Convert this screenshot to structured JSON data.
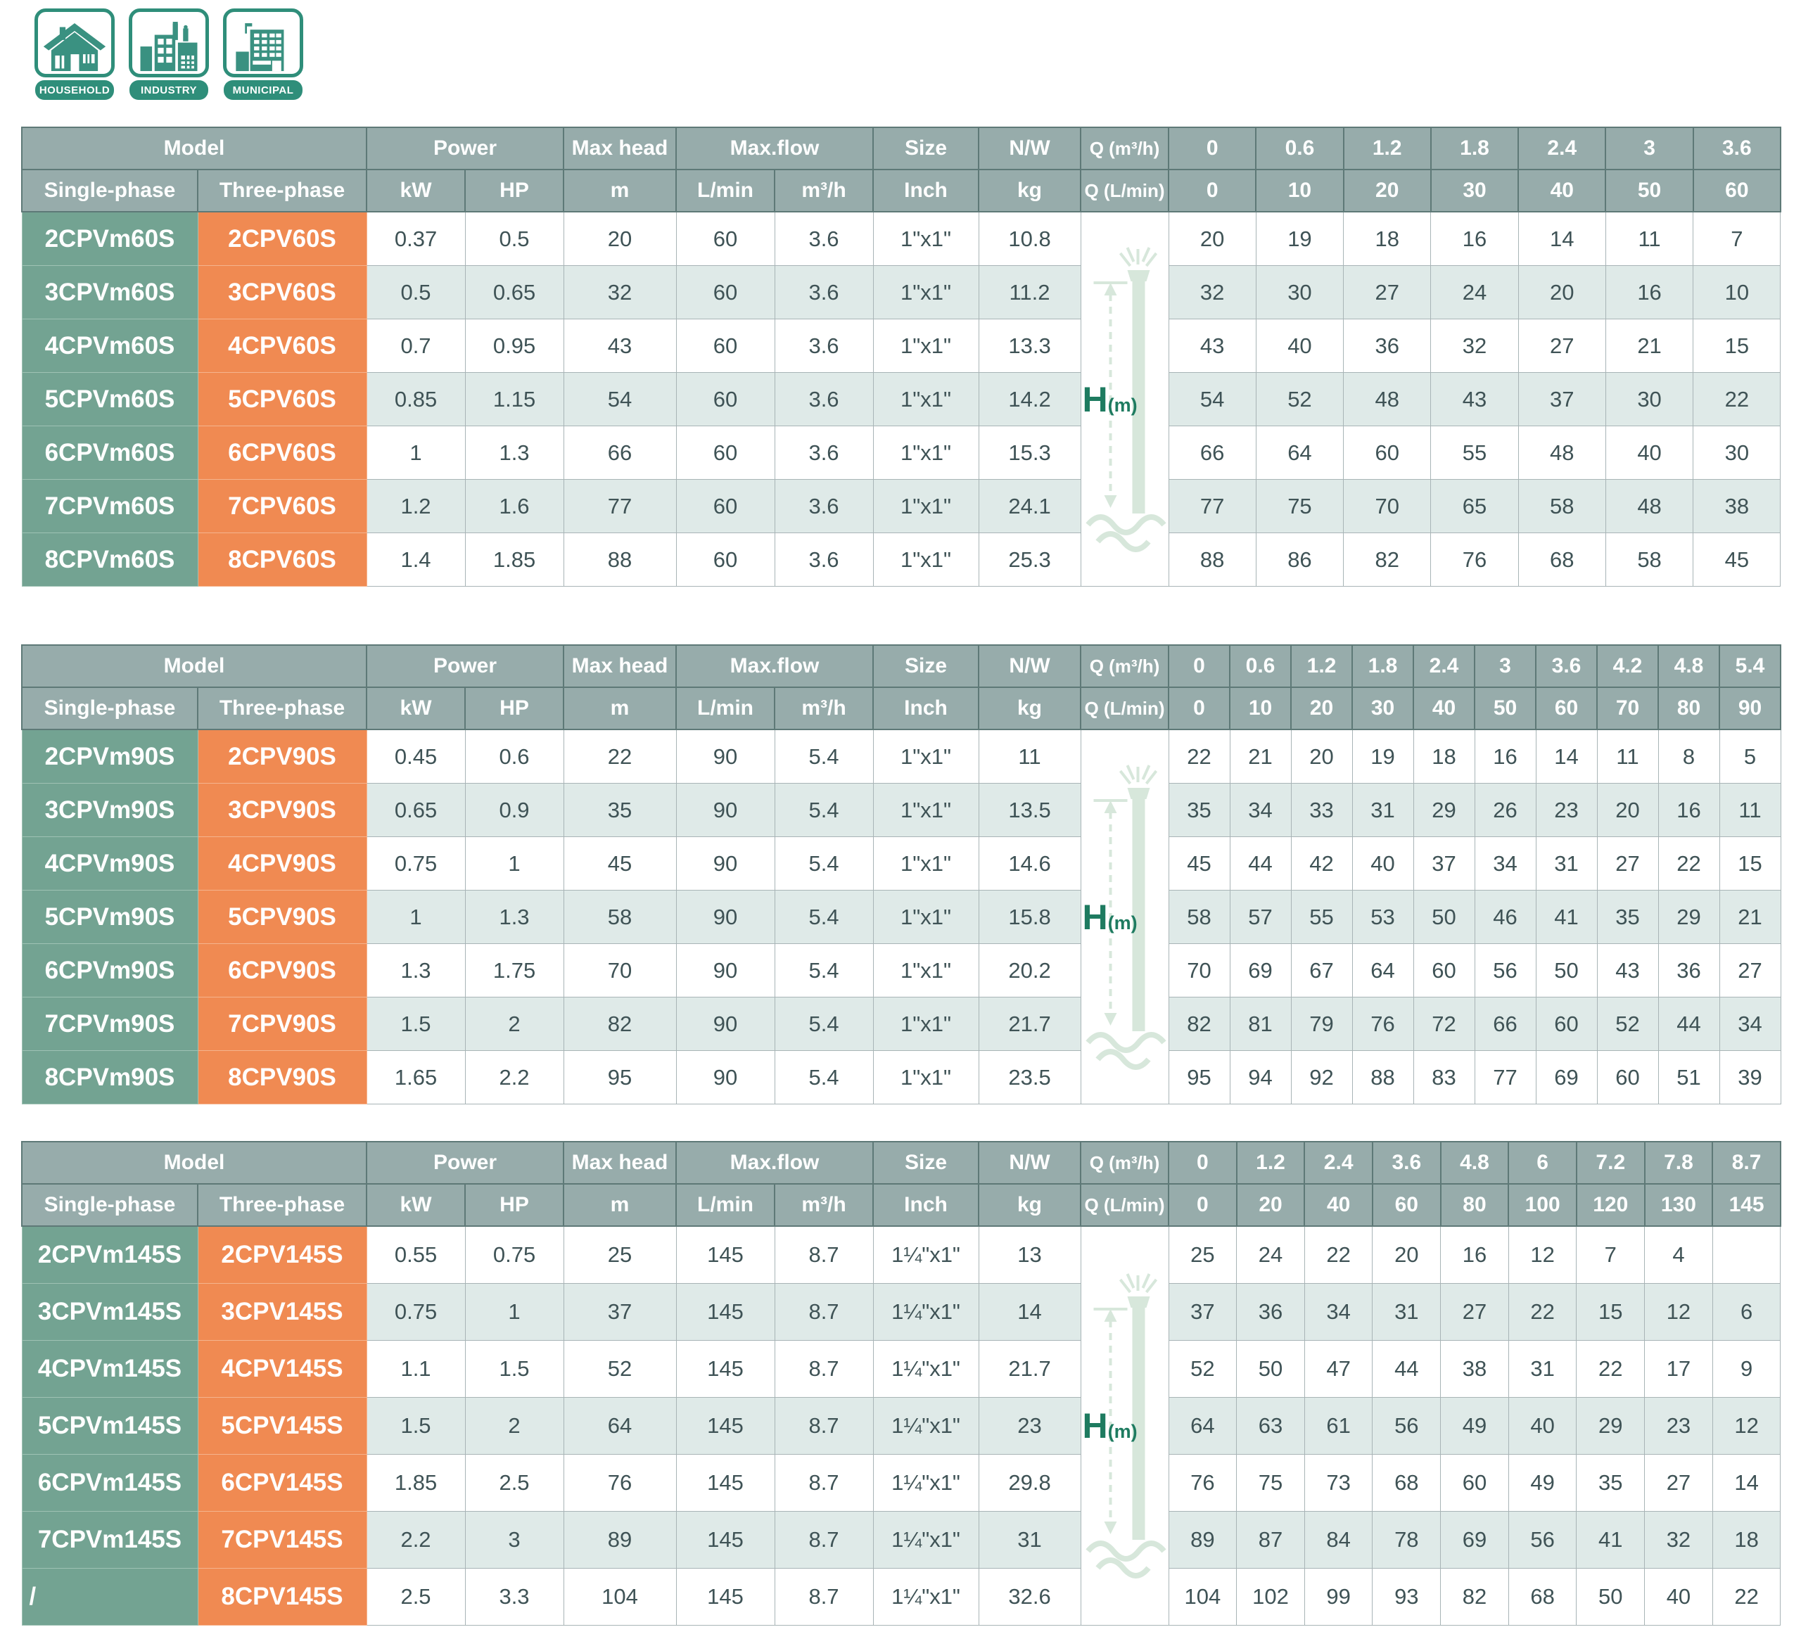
{
  "icons": [
    {
      "label": "HOUSEHOLD"
    },
    {
      "label": "INDUSTRY"
    },
    {
      "label": "MUNICIPAL"
    }
  ],
  "labels": {
    "model": "Model",
    "power": "Power",
    "max_head": "Max head",
    "max_flow": "Max.flow",
    "size": "Size",
    "nw": "N/W",
    "q_m3h": "Q (m³/h)",
    "q_lmin": "Q (L/min)",
    "single": "Single-phase",
    "three": "Three-phase",
    "kw": "kW",
    "hp": "HP",
    "m": "m",
    "lmin": "L/min",
    "m3h": "m³/h",
    "inch": "Inch",
    "kg": "kg",
    "h_big": "H",
    "h_small": "(m)"
  },
  "tables": [
    {
      "q_m3h": [
        "0",
        "0.6",
        "1.2",
        "1.8",
        "2.4",
        "3",
        "3.6"
      ],
      "q_lmin": [
        "0",
        "10",
        "20",
        "30",
        "40",
        "50",
        "60"
      ],
      "rows": [
        {
          "single": "2CPVm60S",
          "three": "2CPV60S",
          "kw": "0.37",
          "hp": "0.5",
          "head": "20",
          "flow_lmin": "60",
          "flow_m3h": "3.6",
          "size": "1\"x1\"",
          "nw": "10.8",
          "h": [
            "20",
            "19",
            "18",
            "16",
            "14",
            "11",
            "7"
          ]
        },
        {
          "single": "3CPVm60S",
          "three": "3CPV60S",
          "kw": "0.5",
          "hp": "0.65",
          "head": "32",
          "flow_lmin": "60",
          "flow_m3h": "3.6",
          "size": "1\"x1\"",
          "nw": "11.2",
          "h": [
            "32",
            "30",
            "27",
            "24",
            "20",
            "16",
            "10"
          ]
        },
        {
          "single": "4CPVm60S",
          "three": "4CPV60S",
          "kw": "0.7",
          "hp": "0.95",
          "head": "43",
          "flow_lmin": "60",
          "flow_m3h": "3.6",
          "size": "1\"x1\"",
          "nw": "13.3",
          "h": [
            "43",
            "40",
            "36",
            "32",
            "27",
            "21",
            "15"
          ]
        },
        {
          "single": "5CPVm60S",
          "three": "5CPV60S",
          "kw": "0.85",
          "hp": "1.15",
          "head": "54",
          "flow_lmin": "60",
          "flow_m3h": "3.6",
          "size": "1\"x1\"",
          "nw": "14.2",
          "h": [
            "54",
            "52",
            "48",
            "43",
            "37",
            "30",
            "22"
          ]
        },
        {
          "single": "6CPVm60S",
          "three": "6CPV60S",
          "kw": "1",
          "hp": "1.3",
          "head": "66",
          "flow_lmin": "60",
          "flow_m3h": "3.6",
          "size": "1\"x1\"",
          "nw": "15.3",
          "h": [
            "66",
            "64",
            "60",
            "55",
            "48",
            "40",
            "30"
          ]
        },
        {
          "single": "7CPVm60S",
          "three": "7CPV60S",
          "kw": "1.2",
          "hp": "1.6",
          "head": "77",
          "flow_lmin": "60",
          "flow_m3h": "3.6",
          "size": "1\"x1\"",
          "nw": "24.1",
          "h": [
            "77",
            "75",
            "70",
            "65",
            "58",
            "48",
            "38"
          ]
        },
        {
          "single": "8CPVm60S",
          "three": "8CPV60S",
          "kw": "1.4",
          "hp": "1.85",
          "head": "88",
          "flow_lmin": "60",
          "flow_m3h": "3.6",
          "size": "1\"x1\"",
          "nw": "25.3",
          "h": [
            "88",
            "86",
            "82",
            "76",
            "68",
            "58",
            "45"
          ]
        }
      ]
    },
    {
      "q_m3h": [
        "0",
        "0.6",
        "1.2",
        "1.8",
        "2.4",
        "3",
        "3.6",
        "4.2",
        "4.8",
        "5.4"
      ],
      "q_lmin": [
        "0",
        "10",
        "20",
        "30",
        "40",
        "50",
        "60",
        "70",
        "80",
        "90"
      ],
      "rows": [
        {
          "single": "2CPVm90S",
          "three": "2CPV90S",
          "kw": "0.45",
          "hp": "0.6",
          "head": "22",
          "flow_lmin": "90",
          "flow_m3h": "5.4",
          "size": "1\"x1\"",
          "nw": "11",
          "h": [
            "22",
            "21",
            "20",
            "19",
            "18",
            "16",
            "14",
            "11",
            "8",
            "5"
          ]
        },
        {
          "single": "3CPVm90S",
          "three": "3CPV90S",
          "kw": "0.65",
          "hp": "0.9",
          "head": "35",
          "flow_lmin": "90",
          "flow_m3h": "5.4",
          "size": "1\"x1\"",
          "nw": "13.5",
          "h": [
            "35",
            "34",
            "33",
            "31",
            "29",
            "26",
            "23",
            "20",
            "16",
            "11"
          ]
        },
        {
          "single": "4CPVm90S",
          "three": "4CPV90S",
          "kw": "0.75",
          "hp": "1",
          "head": "45",
          "flow_lmin": "90",
          "flow_m3h": "5.4",
          "size": "1\"x1\"",
          "nw": "14.6",
          "h": [
            "45",
            "44",
            "42",
            "40",
            "37",
            "34",
            "31",
            "27",
            "22",
            "15"
          ]
        },
        {
          "single": "5CPVm90S",
          "three": "5CPV90S",
          "kw": "1",
          "hp": "1.3",
          "head": "58",
          "flow_lmin": "90",
          "flow_m3h": "5.4",
          "size": "1\"x1\"",
          "nw": "15.8",
          "h": [
            "58",
            "57",
            "55",
            "53",
            "50",
            "46",
            "41",
            "35",
            "29",
            "21"
          ]
        },
        {
          "single": "6CPVm90S",
          "three": "6CPV90S",
          "kw": "1.3",
          "hp": "1.75",
          "head": "70",
          "flow_lmin": "90",
          "flow_m3h": "5.4",
          "size": "1\"x1\"",
          "nw": "20.2",
          "h": [
            "70",
            "69",
            "67",
            "64",
            "60",
            "56",
            "50",
            "43",
            "36",
            "27"
          ]
        },
        {
          "single": "7CPVm90S",
          "three": "7CPV90S",
          "kw": "1.5",
          "hp": "2",
          "head": "82",
          "flow_lmin": "90",
          "flow_m3h": "5.4",
          "size": "1\"x1\"",
          "nw": "21.7",
          "h": [
            "82",
            "81",
            "79",
            "76",
            "72",
            "66",
            "60",
            "52",
            "44",
            "34"
          ]
        },
        {
          "single": "8CPVm90S",
          "three": "8CPV90S",
          "kw": "1.65",
          "hp": "2.2",
          "head": "95",
          "flow_lmin": "90",
          "flow_m3h": "5.4",
          "size": "1\"x1\"",
          "nw": "23.5",
          "h": [
            "95",
            "94",
            "92",
            "88",
            "83",
            "77",
            "69",
            "60",
            "51",
            "39"
          ]
        }
      ]
    },
    {
      "q_m3h": [
        "0",
        "1.2",
        "2.4",
        "3.6",
        "4.8",
        "6",
        "7.2",
        "7.8",
        "8.7"
      ],
      "q_lmin": [
        "0",
        "20",
        "40",
        "60",
        "80",
        "100",
        "120",
        "130",
        "145"
      ],
      "rows": [
        {
          "single": "2CPVm145S",
          "three": "2CPV145S",
          "kw": "0.55",
          "hp": "0.75",
          "head": "25",
          "flow_lmin": "145",
          "flow_m3h": "8.7",
          "size": "1¼\"x1\"",
          "nw": "13",
          "h": [
            "25",
            "24",
            "22",
            "20",
            "16",
            "12",
            "7",
            "4",
            ""
          ]
        },
        {
          "single": "3CPVm145S",
          "three": "3CPV145S",
          "kw": "0.75",
          "hp": "1",
          "head": "37",
          "flow_lmin": "145",
          "flow_m3h": "8.7",
          "size": "1¼\"x1\"",
          "nw": "14",
          "h": [
            "37",
            "36",
            "34",
            "31",
            "27",
            "22",
            "15",
            "12",
            "6"
          ]
        },
        {
          "single": "4CPVm145S",
          "three": "4CPV145S",
          "kw": "1.1",
          "hp": "1.5",
          "head": "52",
          "flow_lmin": "145",
          "flow_m3h": "8.7",
          "size": "1¼\"x1\"",
          "nw": "21.7",
          "h": [
            "52",
            "50",
            "47",
            "44",
            "38",
            "31",
            "22",
            "17",
            "9"
          ]
        },
        {
          "single": "5CPVm145S",
          "three": "5CPV145S",
          "kw": "1.5",
          "hp": "2",
          "head": "64",
          "flow_lmin": "145",
          "flow_m3h": "8.7",
          "size": "1¼\"x1\"",
          "nw": "23",
          "h": [
            "64",
            "63",
            "61",
            "56",
            "49",
            "40",
            "29",
            "23",
            "12"
          ]
        },
        {
          "single": "6CPVm145S",
          "three": "6CPV145S",
          "kw": "1.85",
          "hp": "2.5",
          "head": "76",
          "flow_lmin": "145",
          "flow_m3h": "8.7",
          "size": "1¼\"x1\"",
          "nw": "29.8",
          "h": [
            "76",
            "75",
            "73",
            "68",
            "60",
            "49",
            "35",
            "27",
            "14"
          ]
        },
        {
          "single": "7CPVm145S",
          "three": "7CPV145S",
          "kw": "2.2",
          "hp": "3",
          "head": "89",
          "flow_lmin": "145",
          "flow_m3h": "8.7",
          "size": "1¼\"x1\"",
          "nw": "31",
          "h": [
            "89",
            "87",
            "84",
            "78",
            "69",
            "56",
            "41",
            "32",
            "18"
          ]
        },
        {
          "single": "/",
          "three": "8CPV145S",
          "kw": "2.5",
          "hp": "3.3",
          "head": "104",
          "flow_lmin": "145",
          "flow_m3h": "8.7",
          "size": "1¼\"x1\"",
          "nw": "32.6",
          "h": [
            "104",
            "102",
            "99",
            "93",
            "82",
            "68",
            "50",
            "40",
            "22"
          ]
        }
      ]
    }
  ]
}
